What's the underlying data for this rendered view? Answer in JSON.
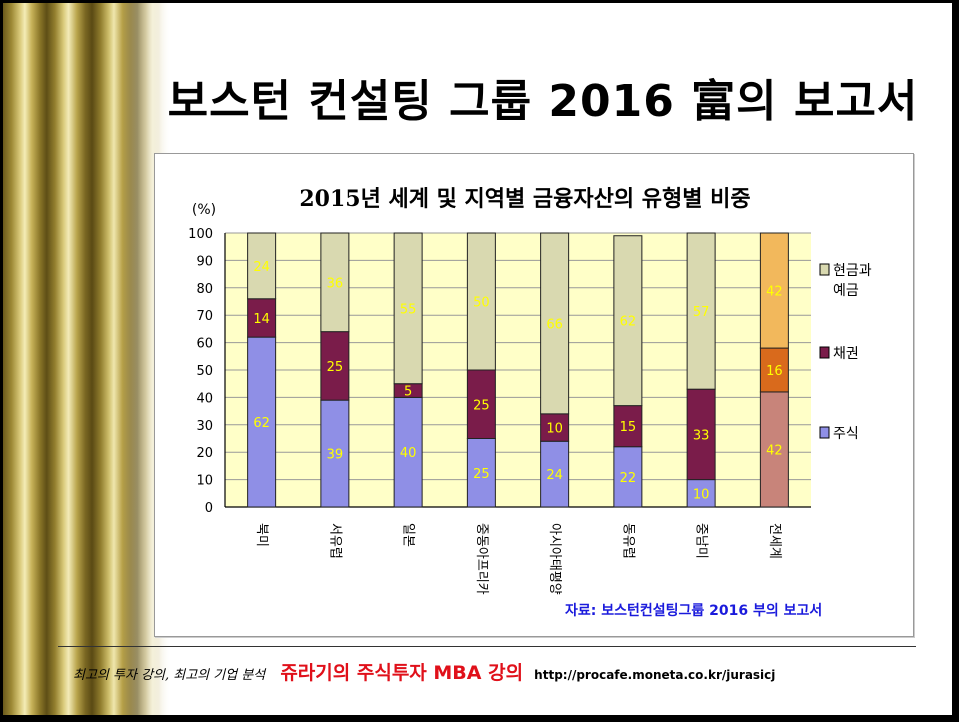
{
  "slide": {
    "title": "보스턴 컨설팅 그룹 2016 富의 보고서"
  },
  "footer": {
    "tagline": "최고의 투자 강의, 최고의 기업 분석",
    "course": "쥬라기의 주식투자 MBA 강의",
    "url": "http://procafe.moneta.co.kr/jurasicj"
  },
  "colors": {
    "stock": "#8f8fe6",
    "bond": "#7a1c4a",
    "cash": "#d9d9b0",
    "plot_bg": "#ffffc8",
    "highlight_stock": "#c8847a",
    "highlight_bond": "#d96a1c",
    "highlight_cash": "#f2b85c",
    "source_text": "#1a1adc",
    "value_label": "#ffff00"
  },
  "chart_data": {
    "type": "bar",
    "stacked": true,
    "title": "2015년 세계 및 지역별 금융자산의 유형별 비중",
    "ylabel": "(%)",
    "ylim": [
      0,
      100
    ],
    "yticks": [
      0,
      10,
      20,
      30,
      40,
      50,
      60,
      70,
      80,
      90,
      100
    ],
    "grid": true,
    "legend_position": "right",
    "categories": [
      "북미",
      "서유럽",
      "일본",
      "중동아프리카",
      "아시아태평양",
      "동유럽",
      "중남미",
      "전세계"
    ],
    "series": [
      {
        "name": "주식",
        "values": [
          62,
          39,
          40,
          25,
          24,
          22,
          10,
          42
        ]
      },
      {
        "name": "채권",
        "values": [
          14,
          25,
          5,
          25,
          10,
          15,
          33,
          16
        ]
      },
      {
        "name": "현금과 예금",
        "values": [
          24,
          36,
          55,
          50,
          66,
          62,
          57,
          42
        ]
      }
    ],
    "legend": [
      "현금과 예금",
      "채권",
      "주식"
    ],
    "legend_lines": [
      [
        "현금과",
        "예금"
      ],
      [
        "채권"
      ],
      [
        "주식"
      ]
    ],
    "highlighted_category": "전세계",
    "source": "자료: 보스턴컨설팅그룹 2016 부의 보고서"
  }
}
